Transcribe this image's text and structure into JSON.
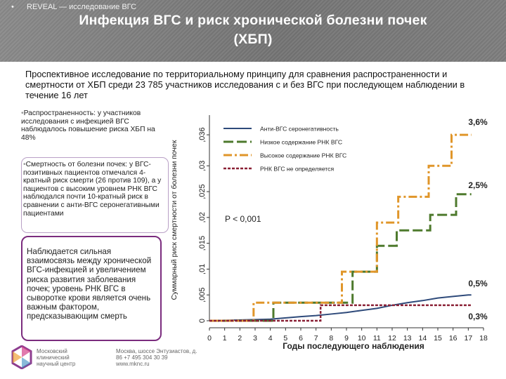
{
  "header": {
    "bullet": "•",
    "tag": "REVEAL — исследование ВГС",
    "title_line1": "Инфекция ВГС и риск хронической болезни почек",
    "title_line2": "(ХБП)"
  },
  "intro": "Проспективное исследование по территориальному принципу для сравнения распространенности и смертности от ХБП среди 23 785 участников исследования с и без ВГС при последующем наблюдении в течение 16 лет",
  "side": {
    "bullet": "•",
    "box1": "Распространенность: у участников исследования с инфекцией ВГС наблюдалось повышение риска ХБП на 48%",
    "box2": "Смертность от болезни почек: у ВГС-позитивных пациентов отмечался 4-кратный риск смерти (26 против 109), а у пациентов с высоким уровнем РНК ВГС наблюдался почти 10-кратный риск в сравнении с анти-ВГС серонегативными пациентами",
    "box3": "Наблюдается сильная взаимосвязь между хронической ВГС-инфекцией и увеличением риска развития заболевания почек; уровень РНК ВГС в сыворотке крови является очень важным фактором, предсказывающим смерть"
  },
  "footer": {
    "org": "Московский клинический научный центр",
    "address": "Москва, шоссе Энтузиастов, д. 86  +7 495 304 30 39  www.mknc.ru"
  },
  "colors": {
    "seroneg": "#2e4a7a",
    "low": "#4e7a2d",
    "high": "#e0962a",
    "undetected": "#8a2035"
  },
  "chart_data": {
    "type": "line",
    "ylabel": "Суммарный риск смертности от болезни почек",
    "xlabel": "Годы последующего наблюдения",
    "x_ticks": [
      "0",
      "1",
      "2",
      "3",
      "4",
      "5",
      "6",
      "7",
      "8",
      "9",
      "10",
      "11",
      "12",
      "13",
      "14",
      "15",
      "16",
      "17",
      "18"
    ],
    "y_ticks": [
      "0",
      ",005",
      ",01",
      ",015",
      ",02",
      ",025",
      ",03",
      ",036"
    ],
    "y_tick_values": [
      0,
      0.005,
      0.01,
      0.015,
      0.02,
      0.025,
      0.03,
      0.036
    ],
    "xlim": [
      0,
      18
    ],
    "ylim": [
      0,
      0.039
    ],
    "p_value": "P < 0,001",
    "annotations": [
      "3,6%",
      "2,5%",
      "0,5%",
      "0,3%"
    ],
    "series": [
      {
        "name": "Анти-ВГС серонегативность",
        "style": "solid",
        "x": [
          0,
          4,
          6,
          7,
          8,
          9,
          10,
          11,
          12,
          13,
          14,
          15,
          16,
          17,
          17.2
        ],
        "y": [
          0,
          0.0003,
          0.0008,
          0.001,
          0.0013,
          0.0016,
          0.002,
          0.0024,
          0.003,
          0.0035,
          0.0039,
          0.0044,
          0.0047,
          0.005,
          0.005
        ]
      },
      {
        "name": "Низкое содержание РНК ВГС",
        "style": "longdash",
        "x": [
          0,
          4,
          4.2,
          8.7,
          9.4,
          11,
          12.3,
          14.5,
          16.2,
          17.2
        ],
        "y": [
          0,
          0,
          0.0035,
          0.0035,
          0.0095,
          0.0145,
          0.0175,
          0.0205,
          0.0245,
          0.0245
        ]
      },
      {
        "name": "Высокое содержание РНК ВГС",
        "style": "dashdot",
        "x": [
          0,
          2.9,
          4,
          8.7,
          9.4,
          11,
          12.4,
          14.4,
          15.9,
          17.2
        ],
        "y": [
          0,
          0.0035,
          0.0035,
          0.0095,
          0.0095,
          0.019,
          0.024,
          0.03,
          0.036,
          0.036
        ]
      },
      {
        "name": "РНК ВГС не определяется",
        "style": "shortdash",
        "x": [
          0,
          7.3,
          16,
          17.2
        ],
        "y": [
          0,
          0.003,
          0.003,
          0.003
        ]
      }
    ]
  }
}
